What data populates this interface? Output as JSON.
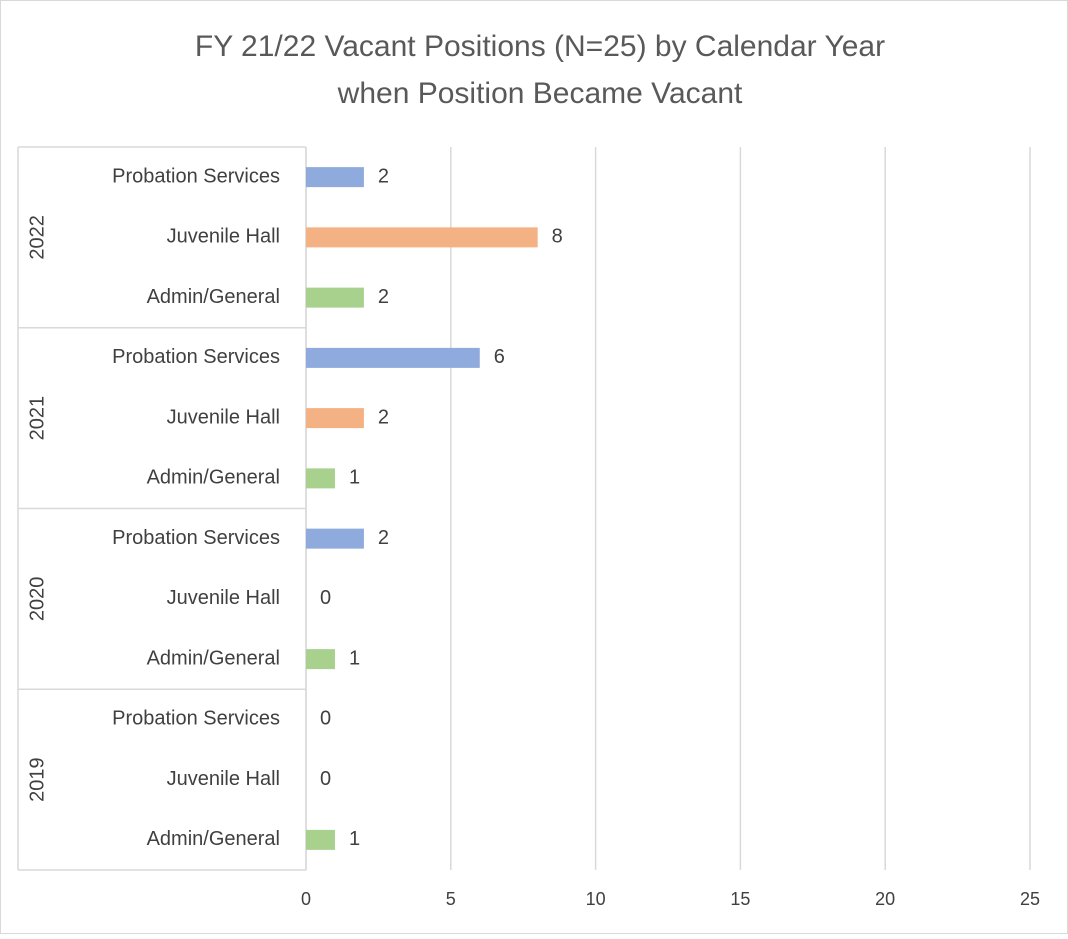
{
  "chart_data": {
    "type": "bar",
    "orientation": "horizontal",
    "title": [
      "FY 21/22 Vacant Positions (N=25) by Calendar Year",
      "when Position Became Vacant"
    ],
    "groups": [
      {
        "label": "2022",
        "categories": [
          "Probation Services",
          "Juvenile Hall",
          "Admin/General"
        ],
        "values": [
          2,
          8,
          2
        ]
      },
      {
        "label": "2021",
        "categories": [
          "Probation Services",
          "Juvenile Hall",
          "Admin/General"
        ],
        "values": [
          6,
          2,
          1
        ]
      },
      {
        "label": "2020",
        "categories": [
          "Probation Services",
          "Juvenile Hall",
          "Admin/General"
        ],
        "values": [
          2,
          0,
          1
        ]
      },
      {
        "label": "2019",
        "categories": [
          "Probation Services",
          "Juvenile Hall",
          "Admin/General"
        ],
        "values": [
          0,
          0,
          1
        ]
      }
    ],
    "colors": [
      "#8faadc",
      "#f4b183",
      "#a9d18e"
    ],
    "xlim": [
      0,
      25
    ],
    "xticks": [
      0,
      5,
      10,
      15,
      20,
      25
    ],
    "grid": true
  }
}
